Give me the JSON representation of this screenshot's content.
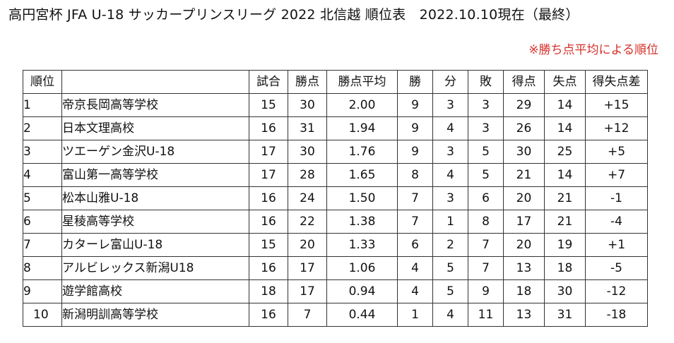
{
  "title": "高円宮杯 JFA U-18 サッカープリンスリーグ 2022 北信越 順位表　2022.10.10現在（最終）",
  "note": "※勝ち点平均による順位",
  "table": {
    "headers": [
      "順位",
      "",
      "試合",
      "勝点",
      "勝点平均",
      "勝",
      "分",
      "敗",
      "得点",
      "失点",
      "得失点差"
    ],
    "rows": [
      [
        "1",
        "帝京長岡高等学校",
        "15",
        "30",
        "2.00",
        "9",
        "3",
        "3",
        "29",
        "14",
        "+15"
      ],
      [
        "2",
        "日本文理高校",
        "16",
        "31",
        "1.94",
        "9",
        "4",
        "3",
        "26",
        "14",
        "+12"
      ],
      [
        "3",
        "ツエーゲン金沢U-18",
        "17",
        "30",
        "1.76",
        "9",
        "3",
        "5",
        "30",
        "25",
        "+5"
      ],
      [
        "4",
        "富山第一高等学校",
        "17",
        "28",
        "1.65",
        "8",
        "4",
        "5",
        "21",
        "14",
        "+7"
      ],
      [
        "5",
        "松本山雅U-18",
        "16",
        "24",
        "1.50",
        "7",
        "3",
        "6",
        "20",
        "21",
        "-1"
      ],
      [
        "6",
        "星稜高等学校",
        "16",
        "22",
        "1.38",
        "7",
        "1",
        "8",
        "17",
        "21",
        "-4"
      ],
      [
        "7",
        "カターレ富山U-18",
        "15",
        "20",
        "1.33",
        "6",
        "2",
        "7",
        "20",
        "19",
        "+1"
      ],
      [
        "8",
        "アルビレックス新潟U18",
        "16",
        "17",
        "1.06",
        "4",
        "5",
        "7",
        "13",
        "18",
        "-5"
      ],
      [
        "9",
        "遊学館高校",
        "18",
        "17",
        "0.94",
        "4",
        "5",
        "9",
        "18",
        "30",
        "-12"
      ],
      [
        "10",
        "新潟明訓高等学校",
        "16",
        "7",
        "0.44",
        "1",
        "4",
        "11",
        "13",
        "31",
        "-18"
      ]
    ]
  },
  "colors": {
    "note": "#d4302a",
    "border": "#333333",
    "text": "#111111"
  }
}
